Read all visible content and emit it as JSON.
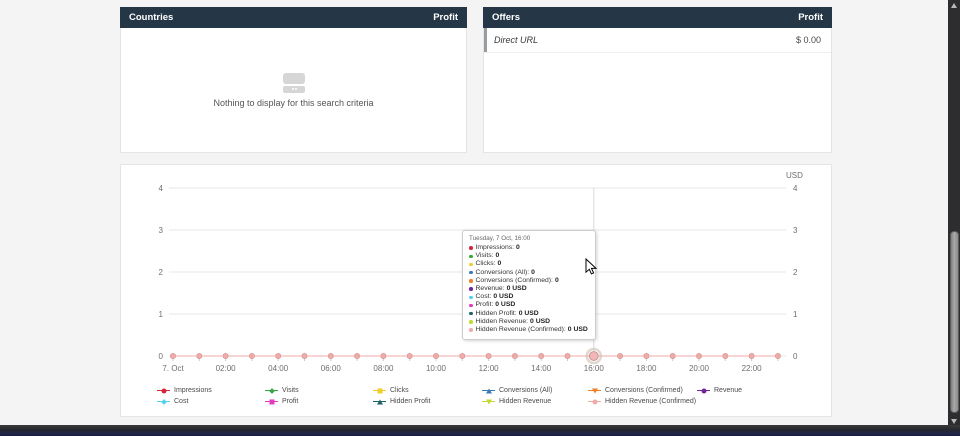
{
  "theme": {
    "page_bg": "#f4f4f5",
    "panel_header_bg": "#253746",
    "panel_header_text": "#ffffff",
    "chart_line_visible": "#f0aba6"
  },
  "panels": {
    "countries": {
      "title": "Countries",
      "value_column": "Profit",
      "empty_message": "Nothing to display for this search criteria"
    },
    "offers": {
      "title": "Offers",
      "value_column": "Profit",
      "rows": [
        {
          "name": "Direct URL",
          "profit": "$ 0.00"
        }
      ]
    }
  },
  "chart_data": {
    "type": "line",
    "title": "",
    "unit": "USD",
    "date": "7. Oct",
    "ylim": [
      0,
      4
    ],
    "y_ticks": [
      0,
      1,
      2,
      3,
      4
    ],
    "grid": true,
    "legend_position": "bottom",
    "x": [
      0,
      1,
      2,
      3,
      4,
      5,
      6,
      7,
      8,
      9,
      10,
      11,
      12,
      13,
      14,
      15,
      16,
      17,
      18,
      19,
      20,
      21,
      22,
      23
    ],
    "x_tick_labels": [
      {
        "text": "7. Oct",
        "hour": 0
      },
      {
        "text": "02:00",
        "hour": 2
      },
      {
        "text": "04:00",
        "hour": 4
      },
      {
        "text": "06:00",
        "hour": 6
      },
      {
        "text": "08:00",
        "hour": 8
      },
      {
        "text": "10:00",
        "hour": 10
      },
      {
        "text": "12:00",
        "hour": 12
      },
      {
        "text": "14:00",
        "hour": 14
      },
      {
        "text": "16:00",
        "hour": 16
      },
      {
        "text": "18:00",
        "hour": 18
      },
      {
        "text": "20:00",
        "hour": 20
      },
      {
        "text": "22:00",
        "hour": 22
      }
    ],
    "series": [
      {
        "name": "Impressions",
        "color": "#d6273a",
        "marker": "circle",
        "values": [
          0,
          0,
          0,
          0,
          0,
          0,
          0,
          0,
          0,
          0,
          0,
          0,
          0,
          0,
          0,
          0,
          0,
          0,
          0,
          0,
          0,
          0,
          0,
          0
        ]
      },
      {
        "name": "Visits",
        "color": "#39a83c",
        "marker": "diamond",
        "values": [
          0,
          0,
          0,
          0,
          0,
          0,
          0,
          0,
          0,
          0,
          0,
          0,
          0,
          0,
          0,
          0,
          0,
          0,
          0,
          0,
          0,
          0,
          0,
          0
        ]
      },
      {
        "name": "Clicks",
        "color": "#f2ce2c",
        "marker": "square",
        "values": [
          0,
          0,
          0,
          0,
          0,
          0,
          0,
          0,
          0,
          0,
          0,
          0,
          0,
          0,
          0,
          0,
          0,
          0,
          0,
          0,
          0,
          0,
          0,
          0
        ]
      },
      {
        "name": "Conversions (All)",
        "color": "#3c7ab4",
        "marker": "triangle",
        "values": [
          0,
          0,
          0,
          0,
          0,
          0,
          0,
          0,
          0,
          0,
          0,
          0,
          0,
          0,
          0,
          0,
          0,
          0,
          0,
          0,
          0,
          0,
          0,
          0
        ]
      },
      {
        "name": "Conversions (Confirmed)",
        "color": "#ef7e25",
        "marker": "triangle-down",
        "values": [
          0,
          0,
          0,
          0,
          0,
          0,
          0,
          0,
          0,
          0,
          0,
          0,
          0,
          0,
          0,
          0,
          0,
          0,
          0,
          0,
          0,
          0,
          0,
          0
        ]
      },
      {
        "name": "Revenue",
        "color": "#71249e",
        "marker": "circle",
        "values": [
          0,
          0,
          0,
          0,
          0,
          0,
          0,
          0,
          0,
          0,
          0,
          0,
          0,
          0,
          0,
          0,
          0,
          0,
          0,
          0,
          0,
          0,
          0,
          0
        ]
      },
      {
        "name": "Cost",
        "color": "#54d0ef",
        "marker": "diamond",
        "values": [
          0,
          0,
          0,
          0,
          0,
          0,
          0,
          0,
          0,
          0,
          0,
          0,
          0,
          0,
          0,
          0,
          0,
          0,
          0,
          0,
          0,
          0,
          0,
          0
        ]
      },
      {
        "name": "Profit",
        "color": "#e23ac1",
        "marker": "square",
        "values": [
          0,
          0,
          0,
          0,
          0,
          0,
          0,
          0,
          0,
          0,
          0,
          0,
          0,
          0,
          0,
          0,
          0,
          0,
          0,
          0,
          0,
          0,
          0,
          0
        ]
      },
      {
        "name": "Hidden Profit",
        "color": "#1d5f6a",
        "marker": "triangle",
        "values": [
          0,
          0,
          0,
          0,
          0,
          0,
          0,
          0,
          0,
          0,
          0,
          0,
          0,
          0,
          0,
          0,
          0,
          0,
          0,
          0,
          0,
          0,
          0,
          0
        ]
      },
      {
        "name": "Hidden Revenue",
        "color": "#c4d932",
        "marker": "triangle-down",
        "values": [
          0,
          0,
          0,
          0,
          0,
          0,
          0,
          0,
          0,
          0,
          0,
          0,
          0,
          0,
          0,
          0,
          0,
          0,
          0,
          0,
          0,
          0,
          0,
          0
        ]
      },
      {
        "name": "Hidden Revenue (Confirmed)",
        "color": "#f0aba6",
        "marker": "circle",
        "values": [
          0,
          0,
          0,
          0,
          0,
          0,
          0,
          0,
          0,
          0,
          0,
          0,
          0,
          0,
          0,
          0,
          0,
          0,
          0,
          0,
          0,
          0,
          0,
          0
        ]
      }
    ],
    "hover": {
      "hour": 16,
      "tooltip": {
        "title": "Tuesday, 7 Oct, 16:00",
        "items": [
          {
            "label": "Impressions",
            "value": "0"
          },
          {
            "label": "Visits",
            "value": "0"
          },
          {
            "label": "Clicks",
            "value": "0"
          },
          {
            "label": "Conversions (All)",
            "value": "0"
          },
          {
            "label": "Conversions (Confirmed)",
            "value": "0"
          },
          {
            "label": "Revenue",
            "value": "0 USD"
          },
          {
            "label": "Cost",
            "value": "0 USD"
          },
          {
            "label": "Profit",
            "value": "0 USD"
          },
          {
            "label": "Hidden Profit",
            "value": "0 USD"
          },
          {
            "label": "Hidden Revenue",
            "value": "0 USD"
          },
          {
            "label": "Hidden Revenue (Confirmed)",
            "value": "0 USD"
          }
        ]
      }
    }
  }
}
